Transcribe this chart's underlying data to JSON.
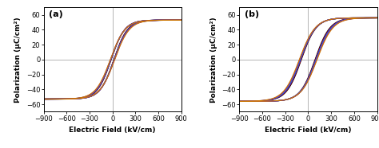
{
  "panel_a_label": "(a)",
  "panel_b_label": "(b)",
  "xlabel": "Electric Field (kV/cm)",
  "ylabel": "Polarization (μC/cm²)",
  "xlim": [
    -900,
    900
  ],
  "ylim_a": [
    -70,
    70
  ],
  "ylim_b": [
    -70,
    70
  ],
  "xticks": [
    -900,
    -600,
    -300,
    0,
    300,
    600,
    900
  ],
  "yticks_a": [
    -60,
    -40,
    -20,
    0,
    20,
    40,
    60
  ],
  "yticks_b": [
    -60,
    -40,
    -20,
    0,
    20,
    40,
    60
  ],
  "curve_colors_a": [
    "#000000",
    "#cc0000",
    "#1a1aff",
    "#00bbbb",
    "#8800cc",
    "#cc7700"
  ],
  "curve_colors_b": [
    "#000000",
    "#cc0000",
    "#1a1aff",
    "#00bbbb",
    "#8800cc",
    "#cc7700"
  ],
  "background_color": "#ffffff",
  "grid_color": "#999999",
  "figsize": [
    4.74,
    1.86
  ],
  "dpi": 100,
  "title_fontsize": 8,
  "label_fontsize": 6.5,
  "tick_fontsize": 6,
  "panel_a_loops": [
    {
      "Ps": 53,
      "Ec": 18,
      "n": 180,
      "lw": 0.9
    },
    {
      "Ps": 53,
      "Ec": 20,
      "n": 182,
      "lw": 0.9
    },
    {
      "Ps": 53,
      "Ec": 22,
      "n": 185,
      "lw": 0.9
    },
    {
      "Ps": 53,
      "Ec": 24,
      "n": 188,
      "lw": 0.9
    },
    {
      "Ps": 53,
      "Ec": 26,
      "n": 190,
      "lw": 0.9
    },
    {
      "Ps": 53,
      "Ec": 28,
      "n": 193,
      "lw": 0.9
    }
  ],
  "panel_b_loops": [
    {
      "Ps": 56,
      "Ec": 90,
      "n": 195,
      "lw": 0.9
    },
    {
      "Ps": 56,
      "Ec": 95,
      "n": 198,
      "lw": 0.9
    },
    {
      "Ps": 56,
      "Ec": 100,
      "n": 200,
      "lw": 0.9
    },
    {
      "Ps": 56,
      "Ec": 105,
      "n": 203,
      "lw": 0.9
    },
    {
      "Ps": 56,
      "Ec": 110,
      "n": 205,
      "lw": 0.9
    },
    {
      "Ps": 56,
      "Ec": 115,
      "n": 208,
      "lw": 0.9
    }
  ]
}
